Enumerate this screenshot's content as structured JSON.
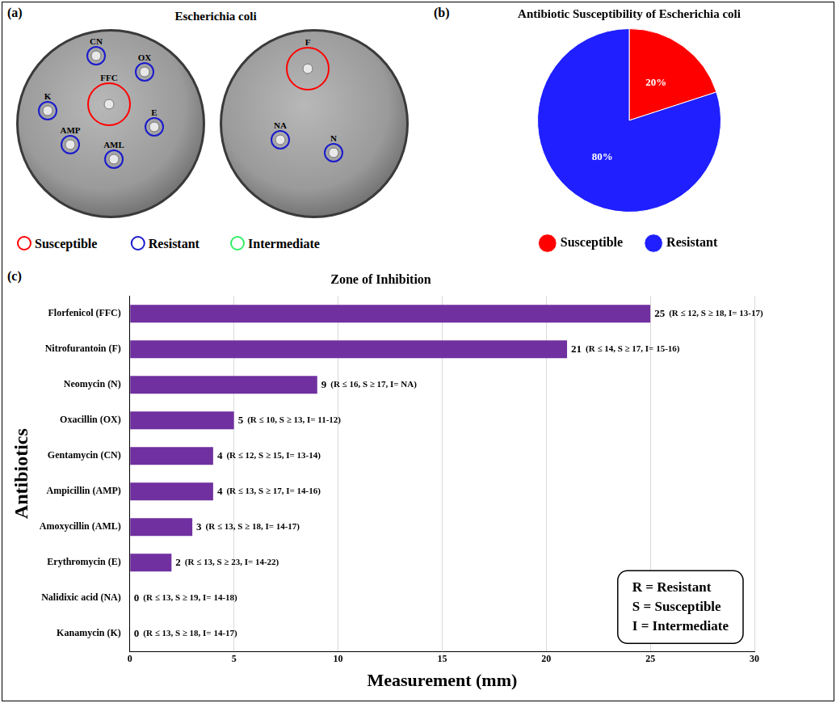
{
  "panel_a": {
    "panel_label": "(a)",
    "title": "Escherichia coli",
    "plates": [
      [
        {
          "label": "CN",
          "status": "Resistant"
        },
        {
          "label": "OX",
          "status": "Resistant"
        },
        {
          "label": "FFC",
          "status": "Susceptible"
        },
        {
          "label": "K",
          "status": "Resistant"
        },
        {
          "label": "E",
          "status": "Resistant"
        },
        {
          "label": "AMP",
          "status": "Resistant"
        },
        {
          "label": "AML",
          "status": "Resistant"
        }
      ],
      [
        {
          "label": "F",
          "status": "Susceptible"
        },
        {
          "label": "NA",
          "status": "Resistant"
        },
        {
          "label": "N",
          "status": "Resistant"
        }
      ]
    ],
    "legend": [
      {
        "name": "Susceptible",
        "color": "#ff0000"
      },
      {
        "name": "Resistant",
        "color": "#1a1acc"
      },
      {
        "name": "Intermediate",
        "color": "#33ee66"
      }
    ]
  },
  "chart_data": [
    {
      "type": "pie",
      "panel_label": "(b)",
      "title": "Antibiotic Susceptibility of Escherichia coli",
      "categories": [
        "Susceptible",
        "Resistant"
      ],
      "values": [
        20,
        80
      ],
      "value_labels": [
        "20%",
        "80%"
      ],
      "colors": [
        "#ff0000",
        "#1f1fff"
      ],
      "data_labels": true,
      "legend": "bottom"
    },
    {
      "type": "bar",
      "panel_label": "(c)",
      "title": "Zone of Inhibition",
      "orientation": "horizontal",
      "x_label": "Measurement (mm)",
      "y_label": "Antibiotics",
      "categories": [
        "Florfenicol (FFC)",
        "Nitrofurantoin (F)",
        "Neomycin (N)",
        "Oxacillin (OX)",
        "Gentamycin (CN)",
        "Ampicillin (AMP)",
        "Amoxycillin (AML)",
        "Erythromycin (E)",
        "Nalidixic acid (NA)",
        "Kanamycin (K)"
      ],
      "values": [
        25,
        21,
        9,
        5,
        4,
        4,
        3,
        2,
        0,
        0
      ],
      "annotations": [
        "(R ≤ 12, S ≥ 18, I= 13-17)",
        "(R ≤ 14, S ≥ 17, I= 15-16)",
        "(R ≤ 16, S ≥ 17, I= NA)",
        "(R ≤ 10, S ≥ 13, I= 11-12)",
        "(R ≤ 12, S ≥ 15, I= 13-14)",
        "(R ≤ 13, S ≥ 17, I= 14-16)",
        "(R ≤ 13, S ≥ 18, I= 14-17)",
        "(R ≤ 13, S ≥ 23, I= 14-22)",
        "(R ≤ 13, S ≥ 19, I= 14-18)",
        "(R ≤ 13, S ≥ 18, I= 14-17)"
      ],
      "key": [
        "R = Resistant",
        "S = Susceptible",
        "I = Intermediate"
      ],
      "color": "#7030a0",
      "data_labels": true,
      "grid": true,
      "xlim": [
        0,
        30
      ],
      "xticks": [
        0,
        5,
        10,
        15,
        20,
        25,
        30
      ]
    }
  ]
}
